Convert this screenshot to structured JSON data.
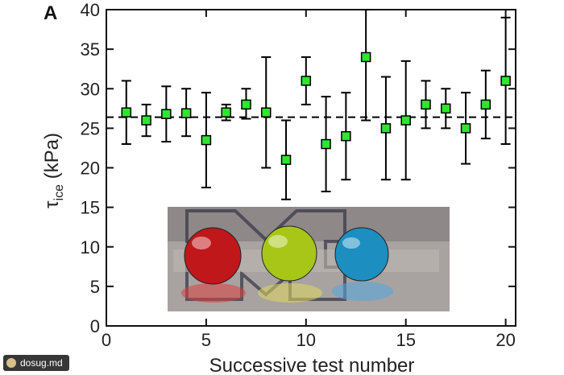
{
  "panel_label": "A",
  "watermark": {
    "text": "dosug.md",
    "icon": "badge-icon"
  },
  "inset_photo": {
    "description_icon": "photo-icon",
    "drops": [
      "#c0171b",
      "#a8c617",
      "#1c8fc0"
    ]
  },
  "colors": {
    "marker_fill": "#2fe52f",
    "marker_stroke": "#000000",
    "error_bar": "#000000",
    "mean_line": "#000000"
  },
  "chart_data": {
    "type": "scatter",
    "xlabel": "Successive test number",
    "ylabel_main": "τ",
    "ylabel_sub": "ice",
    "ylabel_rest": " (kPa)",
    "xlim": [
      0,
      20.5
    ],
    "ylim": [
      0,
      40
    ],
    "xticks": [
      0,
      5,
      10,
      15,
      20
    ],
    "yticks": [
      0,
      5,
      10,
      15,
      20,
      25,
      30,
      35,
      40
    ],
    "mean_line_y": 26.4,
    "grid": false,
    "series": [
      {
        "x": [
          1,
          2,
          3,
          4,
          5,
          6,
          7,
          8,
          9,
          10,
          11,
          12,
          13,
          14,
          15,
          16,
          17,
          18,
          19,
          20
        ],
        "y": [
          27,
          26,
          26.8,
          26.9,
          23.5,
          27,
          28,
          27,
          21,
          31,
          23,
          24,
          34,
          25,
          26,
          28,
          27.5,
          25,
          28,
          31
        ],
        "err_low": [
          23,
          24,
          23.3,
          24,
          17.5,
          26,
          26.2,
          20,
          16,
          28,
          17,
          18.5,
          26,
          18.5,
          18.5,
          25,
          25,
          20.5,
          23.7,
          23
        ],
        "err_high": [
          31,
          28,
          30.3,
          30,
          29.5,
          28,
          30,
          34,
          26,
          34,
          29,
          29.5,
          40,
          31.5,
          33.5,
          31,
          30,
          29.5,
          32.3,
          39
        ]
      }
    ]
  }
}
